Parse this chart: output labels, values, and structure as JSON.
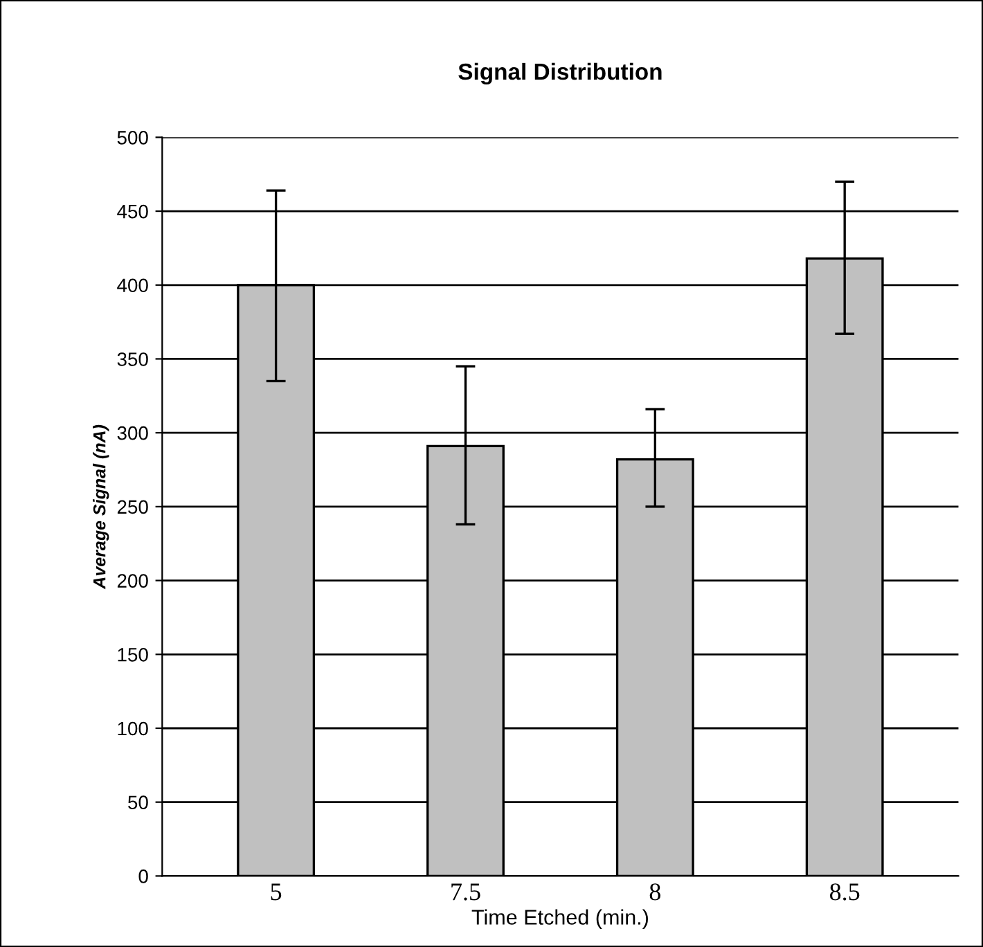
{
  "chart_data": {
    "type": "bar",
    "title": "Signal Distribution",
    "xlabel": "Time Etched (min.)",
    "ylabel": "Average Signal (nA)",
    "categories": [
      "5",
      "7.5",
      "8",
      "8.5"
    ],
    "values": [
      400,
      291,
      282,
      418
    ],
    "errors": [
      [
        335,
        464
      ],
      [
        238,
        345
      ],
      [
        250,
        316
      ],
      [
        367,
        470
      ]
    ],
    "color": "#c0c0c0",
    "ylim": [
      0,
      500
    ],
    "yticks": [
      0,
      50,
      100,
      150,
      200,
      250,
      300,
      350,
      400,
      450,
      500
    ],
    "grid": "y",
    "legend": false
  }
}
